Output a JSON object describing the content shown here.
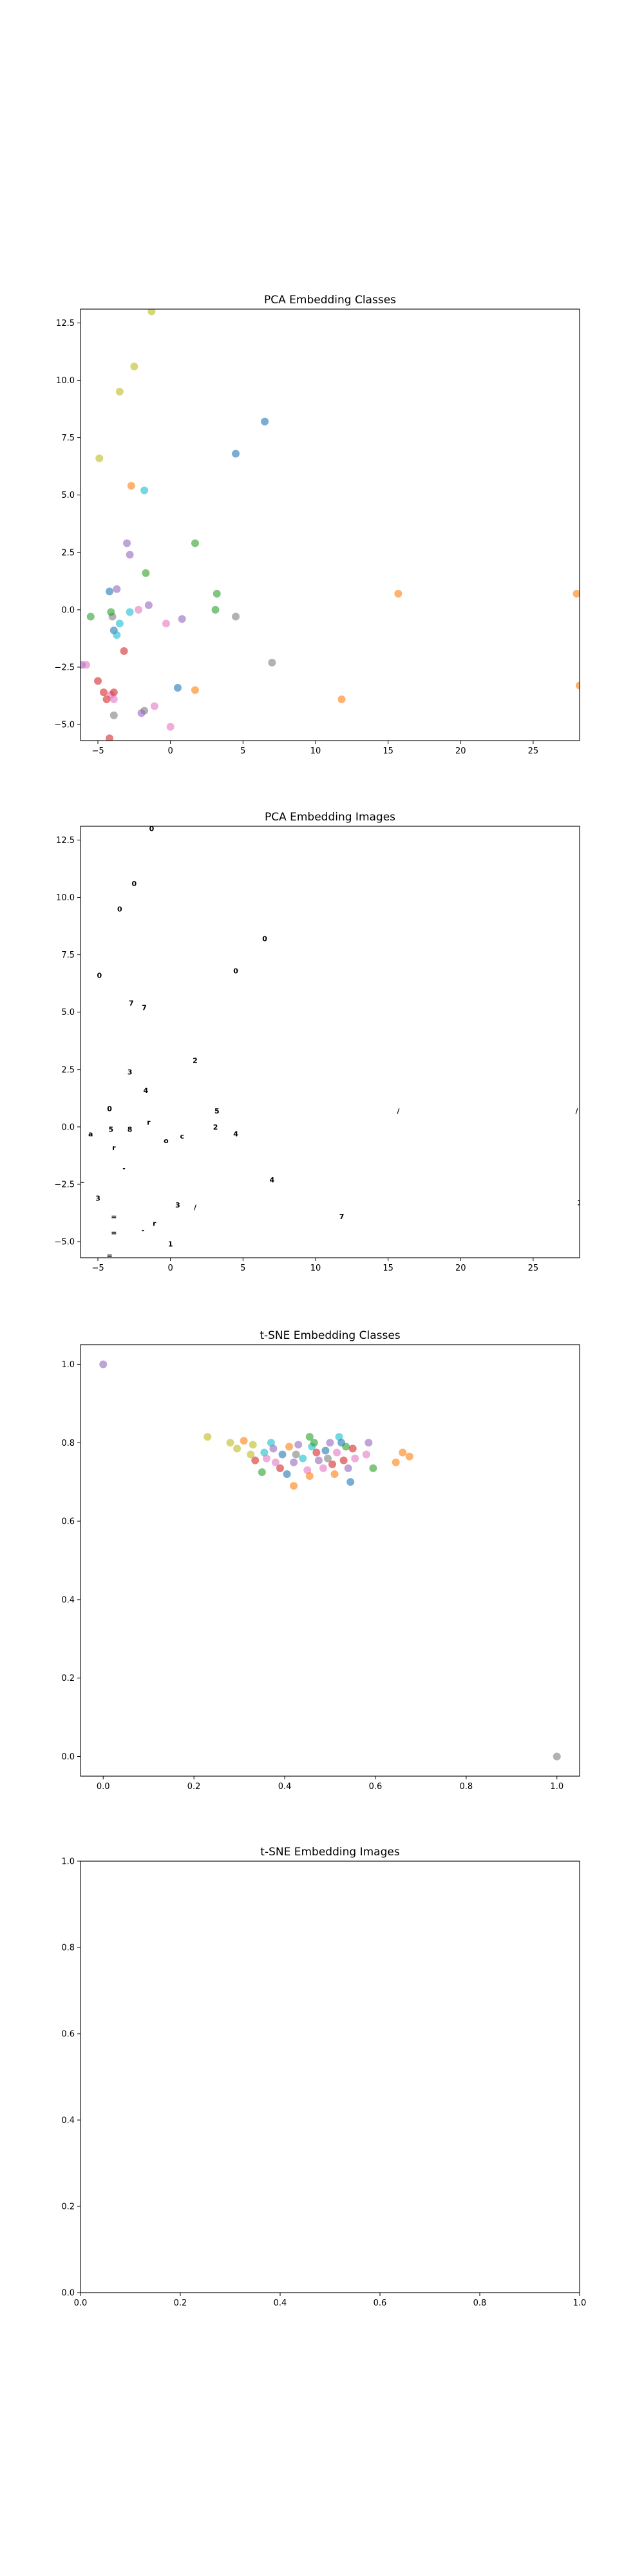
{
  "chart_data": [
    {
      "type": "scatter",
      "title": "PCA Embedding Classes",
      "xlim": [
        -6.2,
        28.2
      ],
      "ylim": [
        -5.7,
        13.1
      ],
      "xticks": [
        -5,
        0,
        5,
        10,
        15,
        20,
        25
      ],
      "yticks": [
        -5.0,
        -2.5,
        0.0,
        2.5,
        5.0,
        7.5,
        10.0,
        12.5
      ],
      "xtick_labels": [
        "−5",
        "0",
        "5",
        "10",
        "15",
        "20",
        "25"
      ],
      "ytick_labels": [
        "−5.0",
        "−2.5",
        "0.0",
        "2.5",
        "5.0",
        "7.5",
        "10.0",
        "12.5"
      ],
      "points": [
        {
          "x": -1.3,
          "y": 13.0,
          "c": "#bcbd22"
        },
        {
          "x": -2.5,
          "y": 10.6,
          "c": "#bcbd22"
        },
        {
          "x": -3.5,
          "y": 9.5,
          "c": "#bcbd22"
        },
        {
          "x": -4.9,
          "y": 6.6,
          "c": "#bcbd22"
        },
        {
          "x": 6.5,
          "y": 8.2,
          "c": "#1f77b4"
        },
        {
          "x": 4.5,
          "y": 6.8,
          "c": "#1f77b4"
        },
        {
          "x": -2.7,
          "y": 5.4,
          "c": "#ff7f0e"
        },
        {
          "x": -1.8,
          "y": 5.2,
          "c": "#17becf"
        },
        {
          "x": -3.0,
          "y": 2.9,
          "c": "#9467bd"
        },
        {
          "x": -2.8,
          "y": 2.4,
          "c": "#9467bd"
        },
        {
          "x": 1.7,
          "y": 2.9,
          "c": "#2ca02c"
        },
        {
          "x": -1.7,
          "y": 1.6,
          "c": "#2ca02c"
        },
        {
          "x": -4.2,
          "y": 0.8,
          "c": "#1f77b4"
        },
        {
          "x": -3.7,
          "y": 0.9,
          "c": "#9467bd"
        },
        {
          "x": 3.2,
          "y": 0.7,
          "c": "#2ca02c"
        },
        {
          "x": 15.7,
          "y": 0.7,
          "c": "#ff7f0e"
        },
        {
          "x": 28.0,
          "y": 0.7,
          "c": "#ff7f0e"
        },
        {
          "x": -1.5,
          "y": 0.2,
          "c": "#9467bd"
        },
        {
          "x": -2.2,
          "y": 0.0,
          "c": "#e377c2"
        },
        {
          "x": 3.1,
          "y": 0.0,
          "c": "#2ca02c"
        },
        {
          "x": -5.5,
          "y": -0.3,
          "c": "#2ca02c"
        },
        {
          "x": -4.0,
          "y": -0.3,
          "c": "#7f7f7f"
        },
        {
          "x": -4.1,
          "y": -0.1,
          "c": "#2ca02c"
        },
        {
          "x": -2.8,
          "y": -0.1,
          "c": "#17becf"
        },
        {
          "x": 4.5,
          "y": -0.3,
          "c": "#7f7f7f"
        },
        {
          "x": 0.8,
          "y": -0.4,
          "c": "#9467bd"
        },
        {
          "x": -0.3,
          "y": -0.6,
          "c": "#e377c2"
        },
        {
          "x": -3.5,
          "y": -0.6,
          "c": "#17becf"
        },
        {
          "x": -3.9,
          "y": -0.9,
          "c": "#1f77b4"
        },
        {
          "x": -3.7,
          "y": -1.1,
          "c": "#17becf"
        },
        {
          "x": -3.2,
          "y": -1.8,
          "c": "#d62728"
        },
        {
          "x": -6.1,
          "y": -2.4,
          "c": "#9467bd"
        },
        {
          "x": -5.8,
          "y": -2.4,
          "c": "#e377c2"
        },
        {
          "x": 7.0,
          "y": -2.3,
          "c": "#7f7f7f"
        },
        {
          "x": -5.0,
          "y": -3.1,
          "c": "#d62728"
        },
        {
          "x": 0.5,
          "y": -3.4,
          "c": "#1f77b4"
        },
        {
          "x": 1.7,
          "y": -3.5,
          "c": "#ff7f0e"
        },
        {
          "x": 28.2,
          "y": -3.3,
          "c": "#ff7f0e"
        },
        {
          "x": -4.6,
          "y": -3.6,
          "c": "#d62728"
        },
        {
          "x": -4.1,
          "y": -3.7,
          "c": "#e377c2"
        },
        {
          "x": -3.9,
          "y": -3.6,
          "c": "#d62728"
        },
        {
          "x": -3.9,
          "y": -3.9,
          "c": "#e377c2"
        },
        {
          "x": -4.4,
          "y": -3.9,
          "c": "#d62728"
        },
        {
          "x": 11.8,
          "y": -3.9,
          "c": "#ff7f0e"
        },
        {
          "x": -1.1,
          "y": -4.2,
          "c": "#e377c2"
        },
        {
          "x": -1.8,
          "y": -4.4,
          "c": "#7f7f7f"
        },
        {
          "x": -2.0,
          "y": -4.5,
          "c": "#9467bd"
        },
        {
          "x": -3.9,
          "y": -4.6,
          "c": "#7f7f7f"
        },
        {
          "x": 0.0,
          "y": -5.1,
          "c": "#e377c2"
        },
        {
          "x": -4.2,
          "y": -5.6,
          "c": "#d62728"
        }
      ]
    },
    {
      "type": "scatter",
      "title": "PCA Embedding Images",
      "xlim": [
        -6.2,
        28.2
      ],
      "ylim": [
        -5.7,
        13.1
      ],
      "xticks": [
        -5,
        0,
        5,
        10,
        15,
        20,
        25
      ],
      "yticks": [
        -5.0,
        -2.5,
        0.0,
        2.5,
        5.0,
        7.5,
        10.0,
        12.5
      ],
      "xtick_labels": [
        "−5",
        "0",
        "5",
        "10",
        "15",
        "20",
        "25"
      ],
      "ytick_labels": [
        "−5.0",
        "−2.5",
        "0.0",
        "2.5",
        "5.0",
        "7.5",
        "10.0",
        "12.5"
      ],
      "markers": [
        {
          "x": -1.3,
          "y": 13.0,
          "g": "0"
        },
        {
          "x": -2.5,
          "y": 10.6,
          "g": "0"
        },
        {
          "x": -3.5,
          "y": 9.5,
          "g": "0"
        },
        {
          "x": -4.9,
          "y": 6.6,
          "g": "0"
        },
        {
          "x": 6.5,
          "y": 8.2,
          "g": "0"
        },
        {
          "x": 4.5,
          "y": 6.8,
          "g": "0"
        },
        {
          "x": -2.7,
          "y": 5.4,
          "g": "7"
        },
        {
          "x": -1.8,
          "y": 5.2,
          "g": "7"
        },
        {
          "x": 1.7,
          "y": 2.9,
          "g": "2"
        },
        {
          "x": -2.8,
          "y": 2.4,
          "g": "3"
        },
        {
          "x": -1.7,
          "y": 1.6,
          "g": "4"
        },
        {
          "x": -4.2,
          "y": 0.8,
          "g": "0"
        },
        {
          "x": 3.2,
          "y": 0.7,
          "g": "5"
        },
        {
          "x": 15.7,
          "y": 0.7,
          "g": "/"
        },
        {
          "x": 28.0,
          "y": 0.7,
          "g": "/"
        },
        {
          "x": -1.5,
          "y": 0.2,
          "g": "r"
        },
        {
          "x": 3.1,
          "y": 0.0,
          "g": "2"
        },
        {
          "x": -5.5,
          "y": -0.3,
          "g": "a"
        },
        {
          "x": -4.1,
          "y": -0.1,
          "g": "5"
        },
        {
          "x": -2.8,
          "y": -0.1,
          "g": "8"
        },
        {
          "x": 4.5,
          "y": -0.3,
          "g": "4"
        },
        {
          "x": 0.8,
          "y": -0.4,
          "g": "c"
        },
        {
          "x": -0.3,
          "y": -0.6,
          "g": "o"
        },
        {
          "x": -3.9,
          "y": -0.9,
          "g": "r"
        },
        {
          "x": -3.2,
          "y": -1.8,
          "g": "-"
        },
        {
          "x": -6.1,
          "y": -2.4,
          "g": "~"
        },
        {
          "x": 7.0,
          "y": -2.3,
          "g": "4"
        },
        {
          "x": -5.0,
          "y": -3.1,
          "g": "3"
        },
        {
          "x": 0.5,
          "y": -3.4,
          "g": "3"
        },
        {
          "x": 1.7,
          "y": -3.5,
          "g": "/"
        },
        {
          "x": 28.2,
          "y": -3.3,
          "g": "1"
        },
        {
          "x": -3.9,
          "y": -3.9,
          "g": "="
        },
        {
          "x": 11.8,
          "y": -3.9,
          "g": "7"
        },
        {
          "x": -1.1,
          "y": -4.2,
          "g": "r"
        },
        {
          "x": -1.9,
          "y": -4.5,
          "g": "-"
        },
        {
          "x": -3.9,
          "y": -4.6,
          "g": "="
        },
        {
          "x": 0.0,
          "y": -5.1,
          "g": "1"
        },
        {
          "x": -4.2,
          "y": -5.6,
          "g": "="
        }
      ]
    },
    {
      "type": "scatter",
      "title": "t-SNE Embedding Classes",
      "xlim": [
        -0.05,
        1.05
      ],
      "ylim": [
        -0.05,
        1.05
      ],
      "xticks": [
        0.0,
        0.2,
        0.4,
        0.6,
        0.8,
        1.0
      ],
      "yticks": [
        0.0,
        0.2,
        0.4,
        0.6,
        0.8,
        1.0
      ],
      "xtick_labels": [
        "0.0",
        "0.2",
        "0.4",
        "0.6",
        "0.8",
        "1.0"
      ],
      "ytick_labels": [
        "0.0",
        "0.2",
        "0.4",
        "0.6",
        "0.8",
        "1.0"
      ],
      "points": [
        {
          "x": 0.0,
          "y": 1.0,
          "c": "#9467bd"
        },
        {
          "x": 1.0,
          "y": 0.0,
          "c": "#7f7f7f"
        },
        {
          "x": 0.23,
          "y": 0.815,
          "c": "#bcbd22"
        },
        {
          "x": 0.28,
          "y": 0.8,
          "c": "#bcbd22"
        },
        {
          "x": 0.31,
          "y": 0.805,
          "c": "#ff7f0e"
        },
        {
          "x": 0.295,
          "y": 0.785,
          "c": "#bcbd22"
        },
        {
          "x": 0.33,
          "y": 0.795,
          "c": "#bcbd22"
        },
        {
          "x": 0.325,
          "y": 0.77,
          "c": "#bcbd22"
        },
        {
          "x": 0.335,
          "y": 0.755,
          "c": "#d62728"
        },
        {
          "x": 0.355,
          "y": 0.775,
          "c": "#17becf"
        },
        {
          "x": 0.36,
          "y": 0.76,
          "c": "#e377c2"
        },
        {
          "x": 0.37,
          "y": 0.8,
          "c": "#17becf"
        },
        {
          "x": 0.375,
          "y": 0.785,
          "c": "#9467bd"
        },
        {
          "x": 0.38,
          "y": 0.75,
          "c": "#e377c2"
        },
        {
          "x": 0.395,
          "y": 0.77,
          "c": "#1f77b4"
        },
        {
          "x": 0.39,
          "y": 0.735,
          "c": "#d62728"
        },
        {
          "x": 0.405,
          "y": 0.72,
          "c": "#1f77b4"
        },
        {
          "x": 0.35,
          "y": 0.725,
          "c": "#2ca02c"
        },
        {
          "x": 0.41,
          "y": 0.79,
          "c": "#ff7f0e"
        },
        {
          "x": 0.42,
          "y": 0.75,
          "c": "#9467bd"
        },
        {
          "x": 0.425,
          "y": 0.77,
          "c": "#7f7f7f"
        },
        {
          "x": 0.43,
          "y": 0.795,
          "c": "#9467bd"
        },
        {
          "x": 0.44,
          "y": 0.76,
          "c": "#17becf"
        },
        {
          "x": 0.45,
          "y": 0.73,
          "c": "#e377c2"
        },
        {
          "x": 0.455,
          "y": 0.815,
          "c": "#2ca02c"
        },
        {
          "x": 0.46,
          "y": 0.79,
          "c": "#17becf"
        },
        {
          "x": 0.465,
          "y": 0.8,
          "c": "#2ca02c"
        },
        {
          "x": 0.47,
          "y": 0.775,
          "c": "#d62728"
        },
        {
          "x": 0.475,
          "y": 0.755,
          "c": "#9467bd"
        },
        {
          "x": 0.455,
          "y": 0.715,
          "c": "#ff7f0e"
        },
        {
          "x": 0.42,
          "y": 0.69,
          "c": "#ff7f0e"
        },
        {
          "x": 0.485,
          "y": 0.735,
          "c": "#e377c2"
        },
        {
          "x": 0.49,
          "y": 0.78,
          "c": "#1f77b4"
        },
        {
          "x": 0.495,
          "y": 0.76,
          "c": "#7f7f7f"
        },
        {
          "x": 0.5,
          "y": 0.8,
          "c": "#9467bd"
        },
        {
          "x": 0.505,
          "y": 0.745,
          "c": "#d62728"
        },
        {
          "x": 0.51,
          "y": 0.72,
          "c": "#ff7f0e"
        },
        {
          "x": 0.515,
          "y": 0.775,
          "c": "#e377c2"
        },
        {
          "x": 0.52,
          "y": 0.815,
          "c": "#17becf"
        },
        {
          "x": 0.525,
          "y": 0.8,
          "c": "#1f77b4"
        },
        {
          "x": 0.53,
          "y": 0.755,
          "c": "#d62728"
        },
        {
          "x": 0.535,
          "y": 0.79,
          "c": "#2ca02c"
        },
        {
          "x": 0.54,
          "y": 0.735,
          "c": "#9467bd"
        },
        {
          "x": 0.545,
          "y": 0.7,
          "c": "#1f77b4"
        },
        {
          "x": 0.55,
          "y": 0.785,
          "c": "#d62728"
        },
        {
          "x": 0.555,
          "y": 0.76,
          "c": "#e377c2"
        },
        {
          "x": 0.58,
          "y": 0.77,
          "c": "#e377c2"
        },
        {
          "x": 0.585,
          "y": 0.8,
          "c": "#9467bd"
        },
        {
          "x": 0.595,
          "y": 0.735,
          "c": "#2ca02c"
        },
        {
          "x": 0.645,
          "y": 0.75,
          "c": "#ff7f0e"
        },
        {
          "x": 0.66,
          "y": 0.775,
          "c": "#ff7f0e"
        },
        {
          "x": 0.675,
          "y": 0.765,
          "c": "#ff7f0e"
        }
      ]
    },
    {
      "type": "scatter",
      "title": "t-SNE Embedding Images",
      "xlim": [
        0.0,
        1.0
      ],
      "ylim": [
        0.0,
        1.0
      ],
      "xticks": [
        0.0,
        0.2,
        0.4,
        0.6,
        0.8,
        1.0
      ],
      "yticks": [
        0.0,
        0.2,
        0.4,
        0.6,
        0.8,
        1.0
      ],
      "xtick_labels": [
        "0.0",
        "0.2",
        "0.4",
        "0.6",
        "0.8",
        "1.0"
      ],
      "ytick_labels": [
        "0.0",
        "0.2",
        "0.4",
        "0.6",
        "0.8",
        "1.0"
      ],
      "points": []
    }
  ]
}
